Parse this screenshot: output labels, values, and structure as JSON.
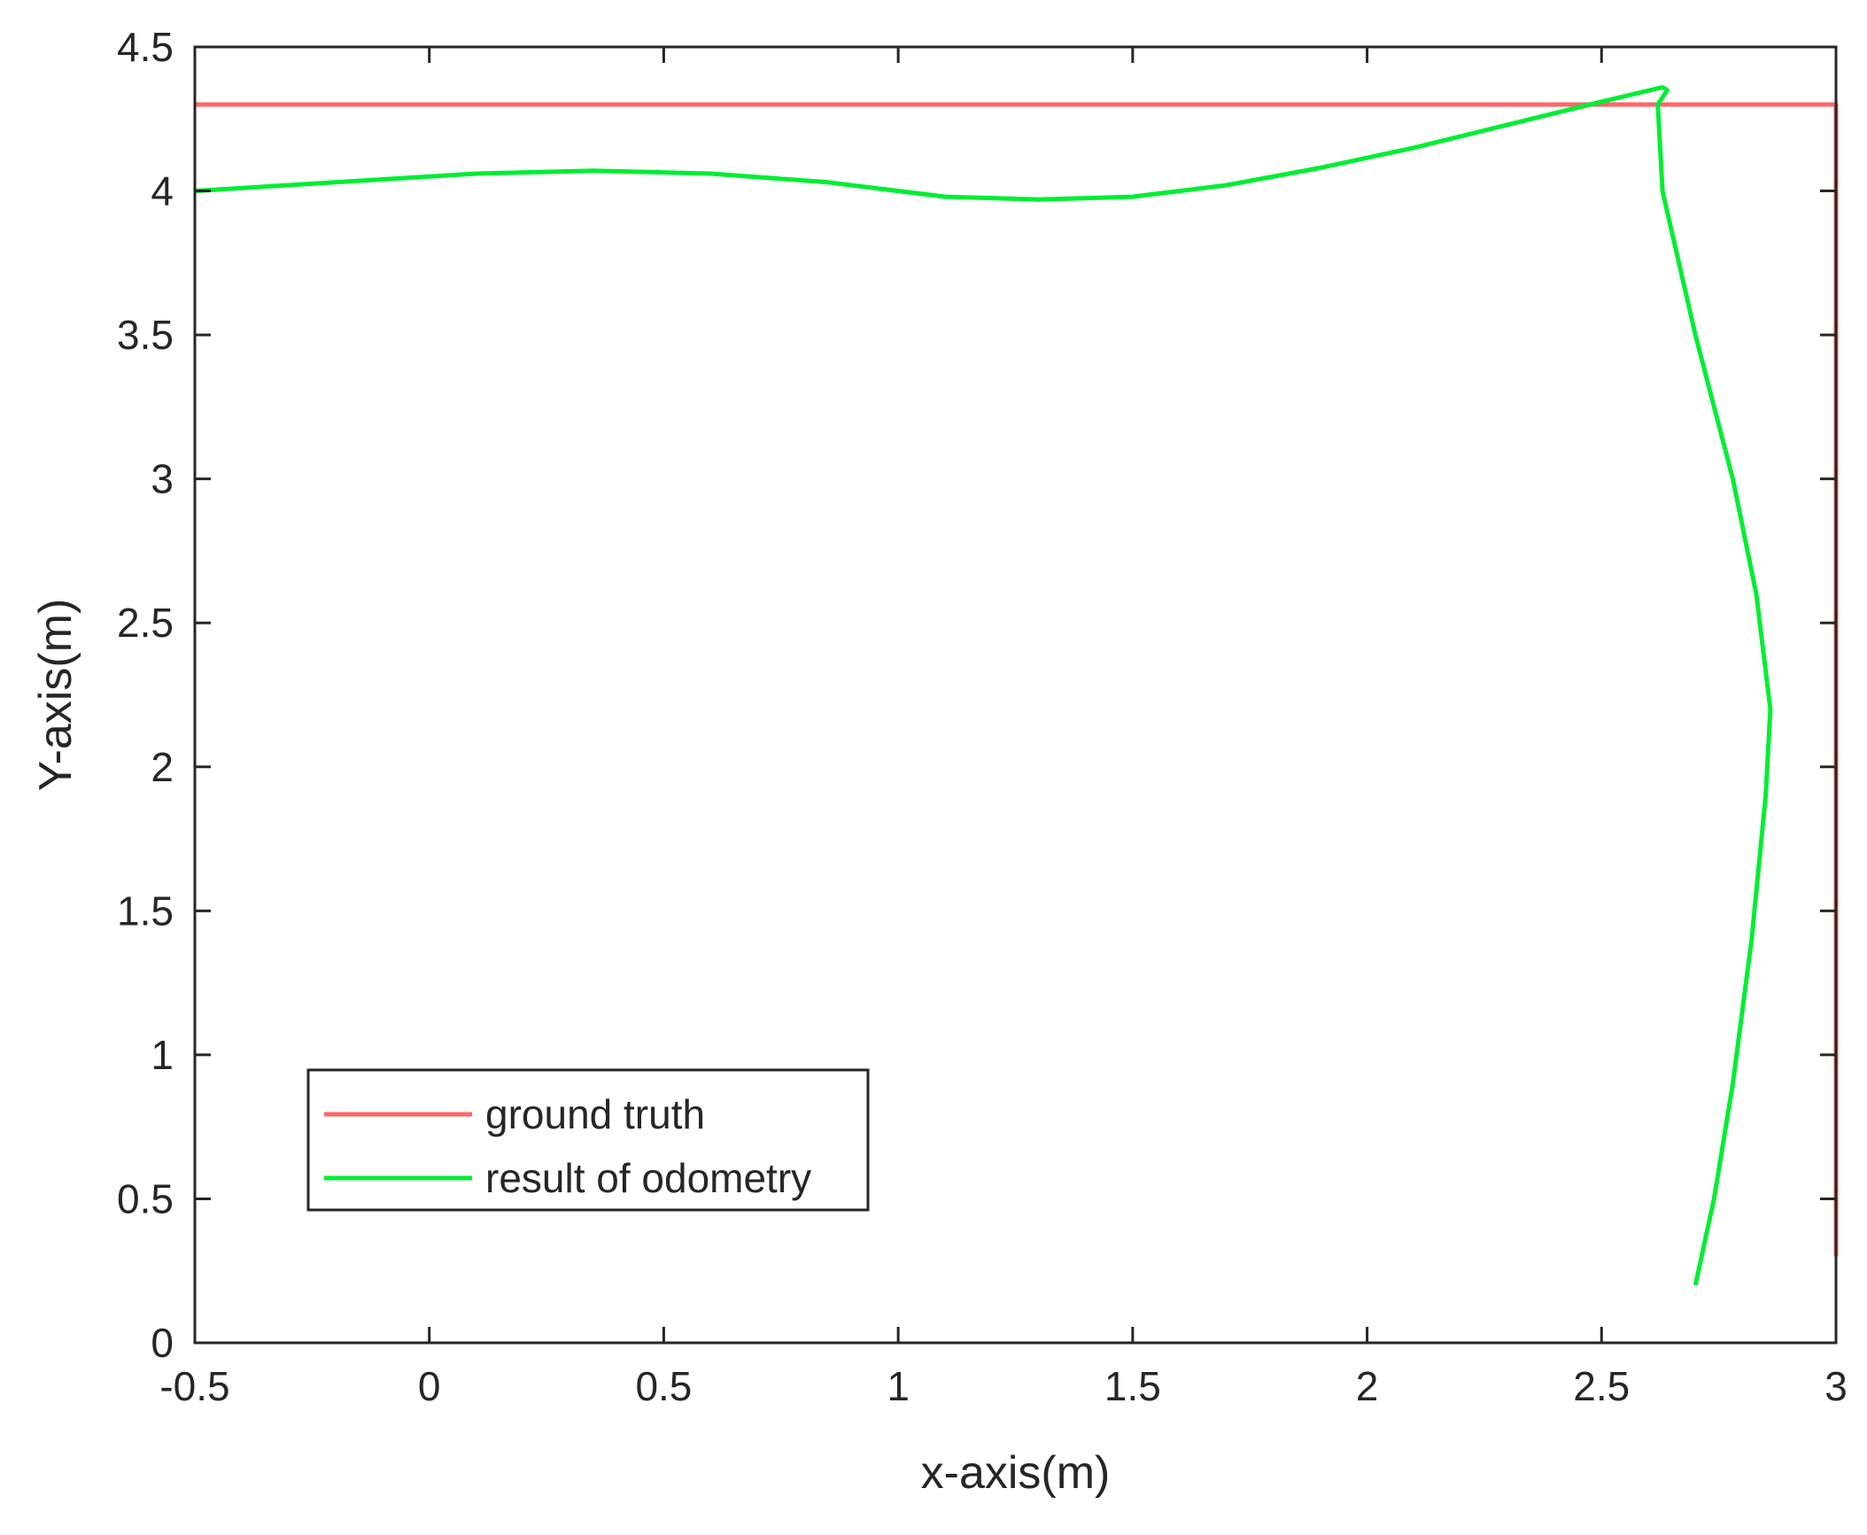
{
  "chart_data": {
    "type": "line",
    "title": "",
    "xlabel": "x-axis(m)",
    "ylabel": "Y-axis(m)",
    "xlim": [
      -0.5,
      3
    ],
    "ylim": [
      0,
      4.5
    ],
    "xticks": [
      -0.5,
      0,
      0.5,
      1,
      1.5,
      2,
      2.5,
      3
    ],
    "yticks": [
      0,
      0.5,
      1,
      1.5,
      2,
      2.5,
      3,
      3.5,
      4,
      4.5
    ],
    "xtick_labels": [
      "-0.5",
      "0",
      "0.5",
      "1",
      "1.5",
      "2",
      "2.5",
      "3"
    ],
    "ytick_labels": [
      "0",
      "0.5",
      "1",
      "1.5",
      "2",
      "2.5",
      "3",
      "3.5",
      "4",
      "4.5"
    ],
    "grid": false,
    "legend_position": "bottom-left",
    "series": [
      {
        "name": "ground truth",
        "color": "#ff6666",
        "x": [
          -0.5,
          3.0,
          3.0
        ],
        "y": [
          4.3,
          4.3,
          0.3
        ]
      },
      {
        "name": "result of odometry",
        "color": "#00ee33",
        "x": [
          -0.5,
          -0.2,
          0.1,
          0.35,
          0.6,
          0.85,
          1.1,
          1.3,
          1.5,
          1.7,
          1.9,
          2.1,
          2.3,
          2.5,
          2.63,
          2.64,
          2.62,
          2.63,
          2.7,
          2.78,
          2.83,
          2.86,
          2.85,
          2.82,
          2.78,
          2.74,
          2.7
        ],
        "y": [
          4.0,
          4.03,
          4.06,
          4.07,
          4.06,
          4.03,
          3.98,
          3.97,
          3.98,
          4.02,
          4.08,
          4.15,
          4.23,
          4.31,
          4.36,
          4.35,
          4.3,
          4.0,
          3.5,
          3.0,
          2.6,
          2.2,
          1.9,
          1.4,
          0.9,
          0.5,
          0.2
        ]
      }
    ]
  }
}
